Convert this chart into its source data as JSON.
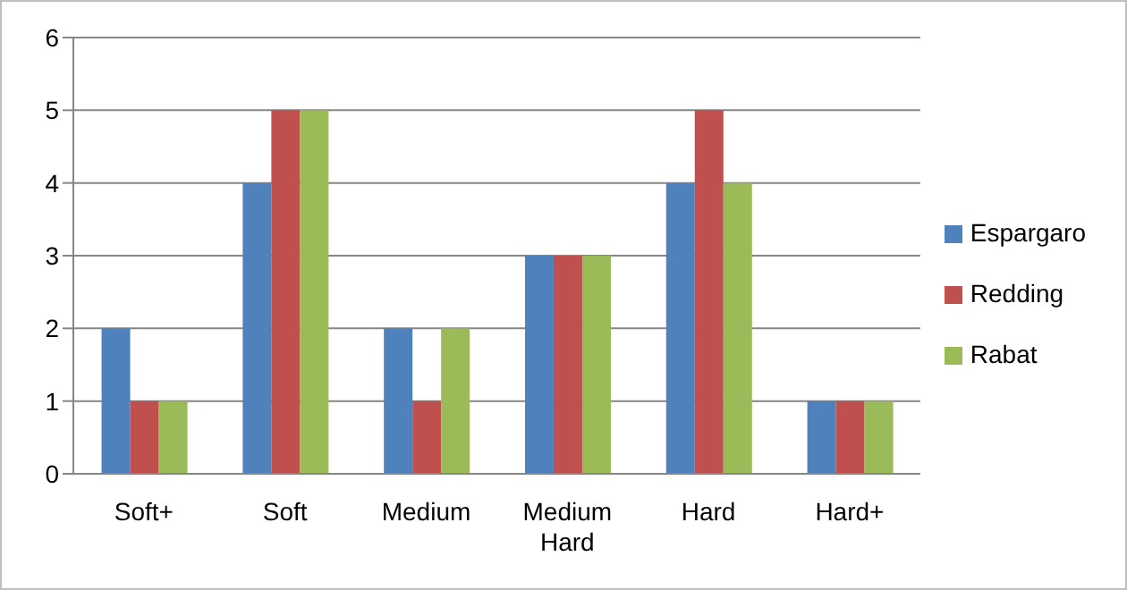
{
  "chart_data": {
    "type": "bar",
    "categories": [
      "Soft+",
      "Soft",
      "Medium",
      "Medium Hard",
      "Hard",
      "Hard+"
    ],
    "series": [
      {
        "name": "Espargaro",
        "color": "#4f81bd",
        "values": [
          2,
          4,
          2,
          3,
          4,
          1
        ]
      },
      {
        "name": "Redding",
        "color": "#c0504d",
        "values": [
          1,
          5,
          1,
          3,
          5,
          1
        ]
      },
      {
        "name": "Rabat",
        "color": "#9bbb59",
        "values": [
          1,
          5,
          2,
          3,
          4,
          1
        ]
      }
    ],
    "ylim": [
      0,
      6
    ],
    "yticks": [
      0,
      1,
      2,
      3,
      4,
      5,
      6
    ],
    "grid": "y",
    "legend": "right"
  }
}
